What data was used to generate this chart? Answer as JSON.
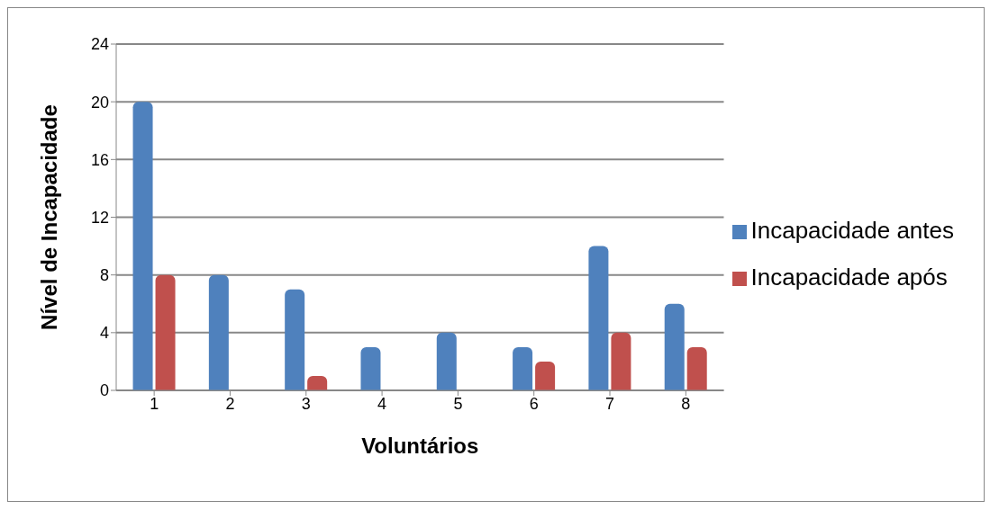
{
  "chart_data": {
    "type": "bar",
    "xlabel": "Voluntários",
    "ylabel": "Nível de Incapacidade",
    "categories": [
      "1",
      "2",
      "3",
      "4",
      "5",
      "6",
      "7",
      "8"
    ],
    "series": [
      {
        "name": "Incapacidade antes",
        "color": "#4f81bd",
        "values": [
          20,
          8,
          7,
          3,
          4,
          3,
          10,
          6
        ]
      },
      {
        "name": "Incapacidade após",
        "color": "#c0504d",
        "values": [
          8,
          0,
          1,
          0,
          0,
          2,
          4,
          3
        ]
      }
    ],
    "ylim": [
      0,
      24
    ],
    "yticks": [
      0,
      4,
      8,
      12,
      16,
      20,
      24
    ],
    "grid": "y",
    "legend": "right"
  }
}
